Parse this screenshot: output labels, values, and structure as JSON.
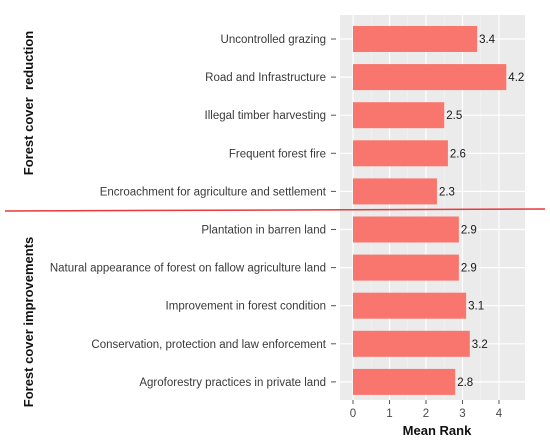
{
  "chart_data": {
    "type": "bar",
    "orientation": "horizontal",
    "categories": [
      "Uncontrolled grazing",
      "Road and Infrastructure",
      "Illegal timber harvesting",
      "Frequent forest fire",
      "Encroachment for agriculture and settlement",
      "Plantation in barren land",
      "Natural appearance of forest on fallow agriculture land",
      "Improvement in forest condition",
      "Conservation, protection and law enforcement",
      "Agroforestry practices in private land"
    ],
    "values": [
      3.4,
      4.2,
      2.5,
      2.6,
      2.3,
      2.9,
      2.9,
      3.1,
      3.2,
      2.8
    ],
    "value_labels": [
      "3.4",
      "4.2",
      "2.5",
      "2.6",
      "2.3",
      "2.9",
      "2.9",
      "3.1",
      "3.2",
      "2.8"
    ],
    "groups": [
      {
        "label": "Forest cover  reduction",
        "count": 5
      },
      {
        "label": "Forest cover improvements",
        "count": 5
      }
    ],
    "xlabel": "Mean Rank",
    "ylabel": "",
    "xlim": [
      0,
      4.5
    ],
    "xticks": [
      0,
      1,
      2,
      3,
      4
    ],
    "grid": true,
    "bar_color": "#F8766D",
    "panel_color": "#EBEBEB",
    "divider_color": "#E8393C"
  }
}
